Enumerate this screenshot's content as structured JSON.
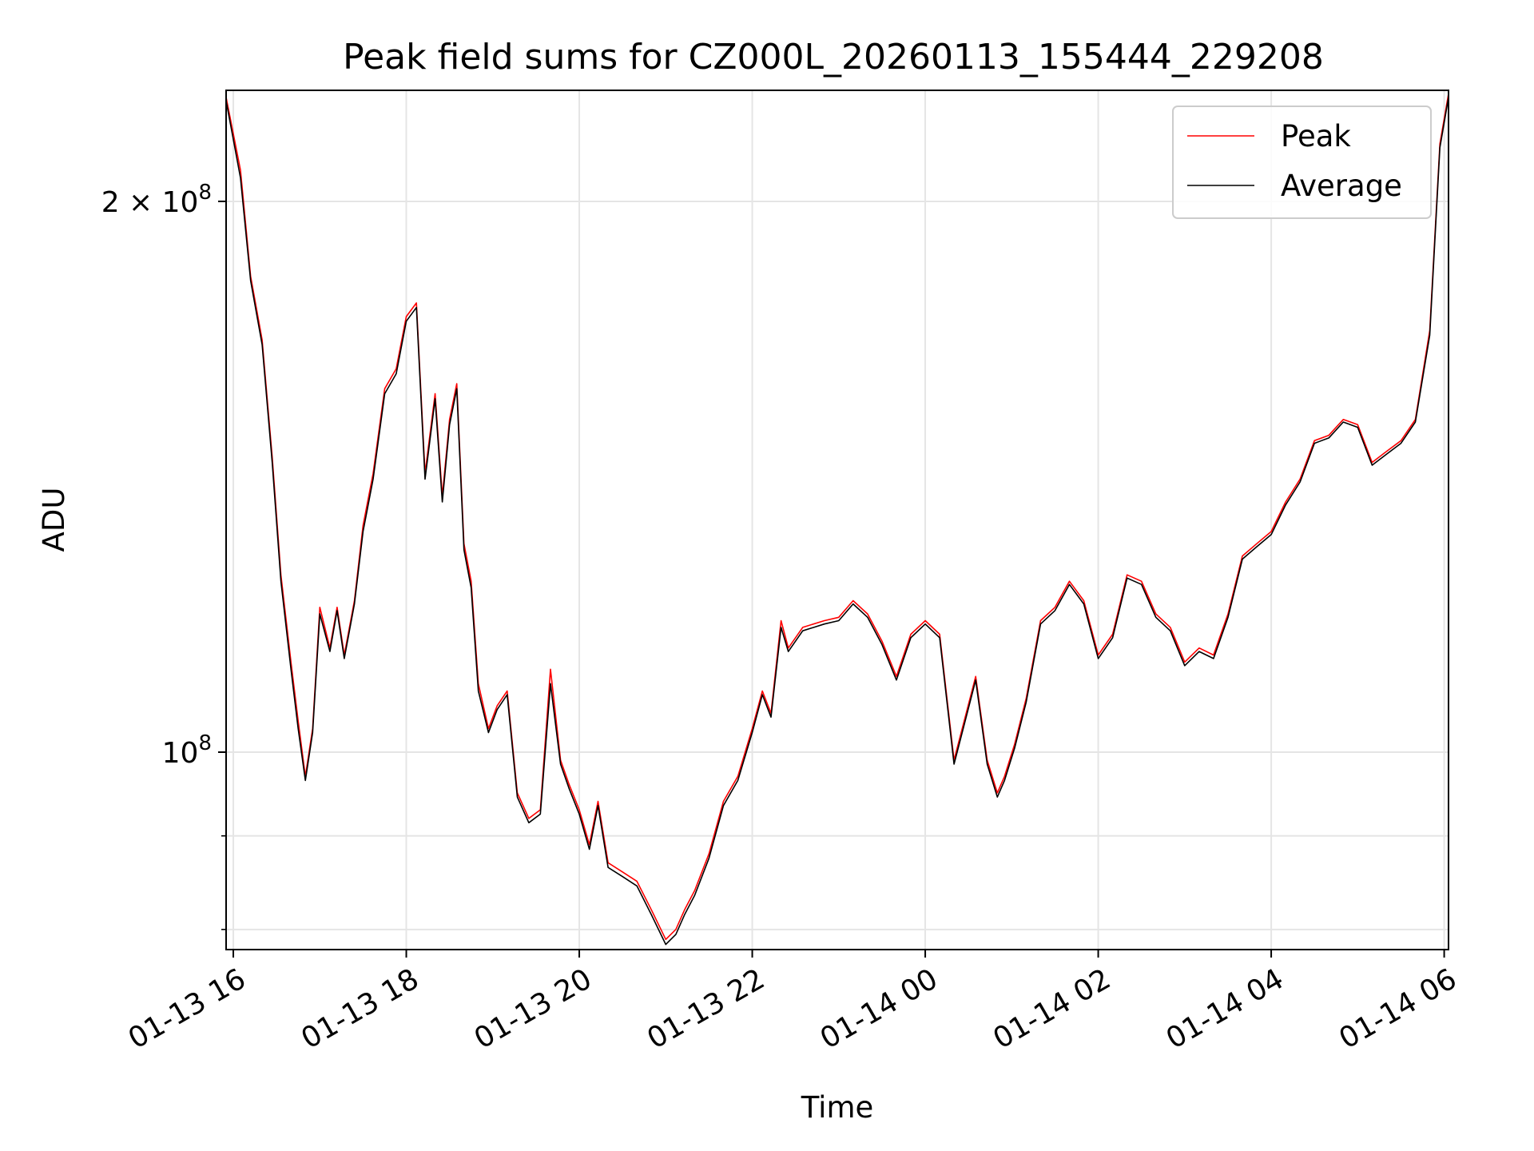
{
  "chart_data": {
    "type": "line",
    "title": "Peak field sums for CZ000L_20260113_155444_229208",
    "xlabel": "Time",
    "ylabel": "ADU",
    "y_scale": "log",
    "ylim": [
      78000000,
      230000000
    ],
    "xlim": [
      "2026-01-13 15:55",
      "2026-01-14 06:03"
    ],
    "x_ticks": [
      "01-13 16",
      "01-13 18",
      "01-13 20",
      "01-13 22",
      "01-14 00",
      "01-14 02",
      "01-14 04",
      "01-14 06"
    ],
    "x_tick_times": [
      "2026-01-13 16:00",
      "2026-01-13 18:00",
      "2026-01-13 20:00",
      "2026-01-13 22:00",
      "2026-01-14 00:00",
      "2026-01-14 02:00",
      "2026-01-14 04:00",
      "2026-01-14 06:00"
    ],
    "y_major_ticks": [
      {
        "value": 200000000,
        "base": "2 × 10",
        "exp": "8"
      },
      {
        "value": 100000000,
        "base": "10",
        "exp": "8"
      }
    ],
    "y_minor_ticks": [
      90000000,
      80000000
    ],
    "grid": true,
    "legend_position": "top-right",
    "series": [
      {
        "name": "Peak",
        "color": "#ff0000",
        "x": [
          "2026-01-13 15:55",
          "2026-01-13 16:05",
          "2026-01-13 16:12",
          "2026-01-13 16:20",
          "2026-01-13 16:27",
          "2026-01-13 16:33",
          "2026-01-13 16:40",
          "2026-01-13 16:45",
          "2026-01-13 16:50",
          "2026-01-13 16:55",
          "2026-01-13 17:00",
          "2026-01-13 17:07",
          "2026-01-13 17:12",
          "2026-01-13 17:17",
          "2026-01-13 17:24",
          "2026-01-13 17:30",
          "2026-01-13 17:37",
          "2026-01-13 17:45",
          "2026-01-13 17:53",
          "2026-01-13 18:00",
          "2026-01-13 18:07",
          "2026-01-13 18:13",
          "2026-01-13 18:20",
          "2026-01-13 18:25",
          "2026-01-13 18:30",
          "2026-01-13 18:35",
          "2026-01-13 18:40",
          "2026-01-13 18:45",
          "2026-01-13 18:50",
          "2026-01-13 18:57",
          "2026-01-13 19:03",
          "2026-01-13 19:10",
          "2026-01-13 19:17",
          "2026-01-13 19:25",
          "2026-01-13 19:33",
          "2026-01-13 19:40",
          "2026-01-13 19:47",
          "2026-01-13 19:53",
          "2026-01-13 20:00",
          "2026-01-13 20:07",
          "2026-01-13 20:13",
          "2026-01-13 20:20",
          "2026-01-13 20:30",
          "2026-01-13 20:40",
          "2026-01-13 20:50",
          "2026-01-13 21:00",
          "2026-01-13 21:07",
          "2026-01-13 21:13",
          "2026-01-13 21:20",
          "2026-01-13 21:30",
          "2026-01-13 21:40",
          "2026-01-13 21:50",
          "2026-01-13 22:00",
          "2026-01-13 22:07",
          "2026-01-13 22:13",
          "2026-01-13 22:20",
          "2026-01-13 22:25",
          "2026-01-13 22:35",
          "2026-01-13 22:50",
          "2026-01-13 23:00",
          "2026-01-13 23:10",
          "2026-01-13 23:20",
          "2026-01-13 23:30",
          "2026-01-13 23:40",
          "2026-01-13 23:50",
          "2026-01-14 00:00",
          "2026-01-14 00:10",
          "2026-01-14 00:20",
          "2026-01-14 00:27",
          "2026-01-14 00:35",
          "2026-01-14 00:43",
          "2026-01-14 00:50",
          "2026-01-14 00:55",
          "2026-01-14 01:02",
          "2026-01-14 01:10",
          "2026-01-14 01:20",
          "2026-01-14 01:30",
          "2026-01-14 01:40",
          "2026-01-14 01:50",
          "2026-01-14 02:00",
          "2026-01-14 02:10",
          "2026-01-14 02:20",
          "2026-01-14 02:30",
          "2026-01-14 02:40",
          "2026-01-14 02:50",
          "2026-01-14 03:00",
          "2026-01-14 03:10",
          "2026-01-14 03:20",
          "2026-01-14 03:30",
          "2026-01-14 03:40",
          "2026-01-14 03:50",
          "2026-01-14 04:00",
          "2026-01-14 04:10",
          "2026-01-14 04:20",
          "2026-01-14 04:30",
          "2026-01-14 04:40",
          "2026-01-14 04:50",
          "2026-01-14 05:00",
          "2026-01-14 05:10",
          "2026-01-14 05:20",
          "2026-01-14 05:30",
          "2026-01-14 05:40",
          "2026-01-14 05:50",
          "2026-01-14 05:57",
          "2026-01-14 06:03"
        ],
        "y": [
          228000000,
          208000000,
          182000000,
          168000000,
          145000000,
          125000000,
          112000000,
          104000000,
          97000000,
          103000000,
          120000000,
          114000000,
          120000000,
          113000000,
          121000000,
          133000000,
          142000000,
          158000000,
          162000000,
          173000000,
          176000000,
          142000000,
          157000000,
          138000000,
          152000000,
          159000000,
          130000000,
          124000000,
          109000000,
          103000000,
          106000000,
          108000000,
          95000000,
          92000000,
          93000000,
          111000000,
          99000000,
          96000000,
          93000000,
          89000000,
          94000000,
          87000000,
          86000000,
          85000000,
          82000000,
          79000000,
          80000000,
          82000000,
          84000000,
          88000000,
          94000000,
          97000000,
          103000000,
          108000000,
          105000000,
          118000000,
          114000000,
          117000000,
          118000000,
          118500000,
          121000000,
          119000000,
          115000000,
          110000000,
          116000000,
          118000000,
          116000000,
          99000000,
          104000000,
          110000000,
          99000000,
          95000000,
          97000000,
          101000000,
          107000000,
          118000000,
          120000000,
          124000000,
          121000000,
          113000000,
          116000000,
          125000000,
          124000000,
          119000000,
          117000000,
          112000000,
          114000000,
          113000000,
          119000000,
          128000000,
          130000000,
          132000000,
          137000000,
          141000000,
          148000000,
          149000000,
          152000000,
          151000000,
          144000000,
          146000000,
          148000000,
          152000000,
          170000000,
          215000000,
          229000000
        ]
      },
      {
        "name": "Average",
        "color": "#000000",
        "x": [
          "2026-01-13 15:55",
          "2026-01-13 16:05",
          "2026-01-13 16:12",
          "2026-01-13 16:20",
          "2026-01-13 16:27",
          "2026-01-13 16:33",
          "2026-01-13 16:40",
          "2026-01-13 16:45",
          "2026-01-13 16:50",
          "2026-01-13 16:55",
          "2026-01-13 17:00",
          "2026-01-13 17:07",
          "2026-01-13 17:12",
          "2026-01-13 17:17",
          "2026-01-13 17:24",
          "2026-01-13 17:30",
          "2026-01-13 17:37",
          "2026-01-13 17:45",
          "2026-01-13 17:53",
          "2026-01-13 18:00",
          "2026-01-13 18:07",
          "2026-01-13 18:13",
          "2026-01-13 18:20",
          "2026-01-13 18:25",
          "2026-01-13 18:30",
          "2026-01-13 18:35",
          "2026-01-13 18:40",
          "2026-01-13 18:45",
          "2026-01-13 18:50",
          "2026-01-13 18:57",
          "2026-01-13 19:03",
          "2026-01-13 19:10",
          "2026-01-13 19:17",
          "2026-01-13 19:25",
          "2026-01-13 19:33",
          "2026-01-13 19:40",
          "2026-01-13 19:47",
          "2026-01-13 19:53",
          "2026-01-13 20:00",
          "2026-01-13 20:07",
          "2026-01-13 20:13",
          "2026-01-13 20:20",
          "2026-01-13 20:30",
          "2026-01-13 20:40",
          "2026-01-13 20:50",
          "2026-01-13 21:00",
          "2026-01-13 21:07",
          "2026-01-13 21:13",
          "2026-01-13 21:20",
          "2026-01-13 21:30",
          "2026-01-13 21:40",
          "2026-01-13 21:50",
          "2026-01-13 22:00",
          "2026-01-13 22:07",
          "2026-01-13 22:13",
          "2026-01-13 22:20",
          "2026-01-13 22:25",
          "2026-01-13 22:35",
          "2026-01-13 22:50",
          "2026-01-13 23:00",
          "2026-01-13 23:10",
          "2026-01-13 23:20",
          "2026-01-13 23:30",
          "2026-01-13 23:40",
          "2026-01-13 23:50",
          "2026-01-14 00:00",
          "2026-01-14 00:10",
          "2026-01-14 00:20",
          "2026-01-14 00:27",
          "2026-01-14 00:35",
          "2026-01-14 00:43",
          "2026-01-14 00:50",
          "2026-01-14 00:55",
          "2026-01-14 01:02",
          "2026-01-14 01:10",
          "2026-01-14 01:20",
          "2026-01-14 01:30",
          "2026-01-14 01:40",
          "2026-01-14 01:50",
          "2026-01-14 02:00",
          "2026-01-14 02:10",
          "2026-01-14 02:20",
          "2026-01-14 02:30",
          "2026-01-14 02:40",
          "2026-01-14 02:50",
          "2026-01-14 03:00",
          "2026-01-14 03:10",
          "2026-01-14 03:20",
          "2026-01-14 03:30",
          "2026-01-14 03:40",
          "2026-01-14 03:50",
          "2026-01-14 04:00",
          "2026-01-14 04:10",
          "2026-01-14 04:20",
          "2026-01-14 04:30",
          "2026-01-14 04:40",
          "2026-01-14 04:50",
          "2026-01-14 05:00",
          "2026-01-14 05:10",
          "2026-01-14 05:20",
          "2026-01-14 05:30",
          "2026-01-14 05:40",
          "2026-01-14 05:50",
          "2026-01-14 05:57",
          "2026-01-14 06:03"
        ],
        "y": [
          227000000,
          206000000,
          181000000,
          167000000,
          144000000,
          124000000,
          111000000,
          103000000,
          96500000,
          102500000,
          119000000,
          113500000,
          119500000,
          112500000,
          120500000,
          132000000,
          141000000,
          157000000,
          161000000,
          172000000,
          175000000,
          141000000,
          156000000,
          137000000,
          151000000,
          158000000,
          129000000,
          123000000,
          108000000,
          102500000,
          105500000,
          107500000,
          94500000,
          91500000,
          92500000,
          109000000,
          98500000,
          95500000,
          92500000,
          88500000,
          93500000,
          86500000,
          85500000,
          84500000,
          81500000,
          78500000,
          79500000,
          81500000,
          83500000,
          87500000,
          93500000,
          96500000,
          102500000,
          107500000,
          104500000,
          117000000,
          113500000,
          116500000,
          117500000,
          118000000,
          120500000,
          118500000,
          114500000,
          109500000,
          115500000,
          117500000,
          115500000,
          98500000,
          103500000,
          109500000,
          98500000,
          94500000,
          96500000,
          100500000,
          106500000,
          117500000,
          119500000,
          123500000,
          120500000,
          112500000,
          115500000,
          124500000,
          123500000,
          118500000,
          116500000,
          111500000,
          113500000,
          112500000,
          118500000,
          127500000,
          129500000,
          131500000,
          136500000,
          140500000,
          147500000,
          148500000,
          151500000,
          150500000,
          143500000,
          145500000,
          147500000,
          151500000,
          169000000,
          214000000,
          228000000
        ]
      }
    ]
  }
}
